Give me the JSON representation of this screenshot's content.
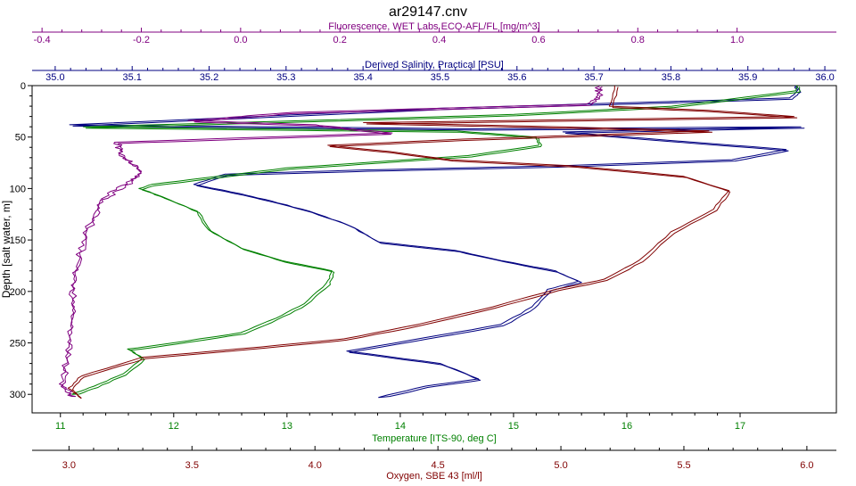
{
  "chart_data": {
    "type": "line",
    "title": "ar29147.cnv",
    "grid": false,
    "legend": "none",
    "y_axis": {
      "label": "Depth [salt water, m]",
      "range": [
        0,
        318
      ],
      "inverted": true,
      "ticks": [
        0,
        50,
        100,
        150,
        200,
        250,
        300
      ]
    },
    "x_axes": [
      {
        "id": "fluorescence",
        "position": "top-outer",
        "label": "Fluorescence, WET Labs ECO-AFL/FL [mg/m^3]",
        "color": "#800080",
        "range": [
          -0.42,
          1.2
        ],
        "ticks": [
          -0.4,
          -0.2,
          0.0,
          0.2,
          0.4,
          0.6,
          0.8,
          1.0
        ],
        "tick_labels": [
          "-0.4",
          "-0.2",
          "0.0",
          "0.2",
          "0.4",
          "0.6",
          "0.8",
          "1.0"
        ]
      },
      {
        "id": "salinity",
        "position": "top-inner",
        "label": "Derived Salinity, Practical [PSU]",
        "color": "#000080",
        "range": [
          34.97,
          36.015
        ],
        "ticks": [
          35.0,
          35.1,
          35.2,
          35.3,
          35.4,
          35.5,
          35.6,
          35.7,
          35.8,
          35.9,
          36.0
        ],
        "tick_labels": [
          "35.0",
          "35.1",
          "35.2",
          "35.3",
          "35.4",
          "35.5",
          "35.6",
          "35.7",
          "35.8",
          "35.9",
          "36.0"
        ]
      },
      {
        "id": "temperature",
        "position": "bottom-inner",
        "label": "Temperature [ITS-90, deg C]",
        "color": "#008000",
        "range": [
          10.75,
          17.85
        ],
        "ticks": [
          11,
          12,
          13,
          14,
          15,
          16,
          17
        ],
        "tick_labels": [
          "11",
          "12",
          "13",
          "14",
          "15",
          "16",
          "17"
        ]
      },
      {
        "id": "oxygen",
        "position": "bottom-outer",
        "label": "Oxygen, SBE 43 [ml/l]",
        "color": "#800000",
        "range": [
          2.85,
          6.12
        ],
        "ticks": [
          3.0,
          3.5,
          4.0,
          4.5,
          5.0,
          5.5,
          6.0
        ],
        "tick_labels": [
          "3.0",
          "3.5",
          "4.0",
          "4.5",
          "5.0",
          "5.5",
          "6.0"
        ]
      }
    ],
    "series": [
      {
        "name": "Derived Salinity, Practical [PSU]",
        "axis": "salinity",
        "color": "#000080",
        "points": [
          [
            35.96,
            0
          ],
          [
            35.965,
            5
          ],
          [
            35.955,
            12
          ],
          [
            35.5,
            22
          ],
          [
            35.02,
            38
          ],
          [
            35.55,
            42
          ],
          [
            35.97,
            40
          ],
          [
            35.66,
            45
          ],
          [
            35.83,
            55
          ],
          [
            35.95,
            62
          ],
          [
            35.88,
            72
          ],
          [
            35.65,
            78
          ],
          [
            35.4,
            82
          ],
          [
            35.22,
            86
          ],
          [
            35.18,
            96
          ],
          [
            35.24,
            105
          ],
          [
            35.28,
            112
          ],
          [
            35.33,
            122
          ],
          [
            35.38,
            135
          ],
          [
            35.42,
            152
          ],
          [
            35.52,
            160
          ],
          [
            35.58,
            170
          ],
          [
            35.65,
            180
          ],
          [
            35.68,
            190
          ],
          [
            35.64,
            198
          ],
          [
            35.62,
            215
          ],
          [
            35.58,
            232
          ],
          [
            35.48,
            245
          ],
          [
            35.38,
            258
          ],
          [
            35.5,
            270
          ],
          [
            35.55,
            285
          ],
          [
            35.48,
            292
          ],
          [
            35.42,
            303
          ]
        ]
      },
      {
        "name": "Temperature [ITS-90, deg C]",
        "axis": "temperature",
        "color": "#008000",
        "points": [
          [
            17.5,
            0
          ],
          [
            17.5,
            5
          ],
          [
            16.4,
            20
          ],
          [
            15.0,
            28
          ],
          [
            13.8,
            32
          ],
          [
            11.2,
            40
          ],
          [
            14.5,
            44
          ],
          [
            15.2,
            50
          ],
          [
            15.22,
            58
          ],
          [
            14.6,
            68
          ],
          [
            13.8,
            74
          ],
          [
            13.0,
            80
          ],
          [
            12.4,
            88
          ],
          [
            11.8,
            96
          ],
          [
            11.7,
            100
          ],
          [
            11.9,
            108
          ],
          [
            12.2,
            122
          ],
          [
            12.3,
            140
          ],
          [
            12.6,
            158
          ],
          [
            12.95,
            170
          ],
          [
            13.4,
            180
          ],
          [
            13.35,
            192
          ],
          [
            13.15,
            212
          ],
          [
            12.9,
            226
          ],
          [
            12.6,
            240
          ],
          [
            12.0,
            250
          ],
          [
            11.6,
            256
          ],
          [
            11.72,
            265
          ],
          [
            11.55,
            280
          ],
          [
            11.3,
            292
          ],
          [
            11.1,
            300
          ]
        ]
      },
      {
        "name": "Oxygen, SBE 43 [ml/l]",
        "axis": "oxygen",
        "color": "#800000",
        "points": [
          [
            5.22,
            0
          ],
          [
            5.2,
            20
          ],
          [
            5.6,
            24
          ],
          [
            5.95,
            30
          ],
          [
            4.2,
            36
          ],
          [
            5.0,
            40
          ],
          [
            5.6,
            44
          ],
          [
            4.6,
            52
          ],
          [
            4.05,
            58
          ],
          [
            4.3,
            64
          ],
          [
            4.55,
            72
          ],
          [
            5.05,
            78
          ],
          [
            5.5,
            88
          ],
          [
            5.68,
            102
          ],
          [
            5.62,
            120
          ],
          [
            5.45,
            142
          ],
          [
            5.32,
            170
          ],
          [
            5.18,
            188
          ],
          [
            4.98,
            198
          ],
          [
            4.72,
            215
          ],
          [
            4.42,
            232
          ],
          [
            4.12,
            246
          ],
          [
            3.78,
            254
          ],
          [
            3.3,
            264
          ],
          [
            3.05,
            282
          ],
          [
            3.0,
            294
          ],
          [
            3.05,
            304
          ]
        ]
      },
      {
        "name": "Fluorescence, WET Labs ECO-AFL/FL [mg/m^3]",
        "axis": "fluorescence",
        "color": "#800080",
        "points": [
          [
            0.72,
            0
          ],
          [
            0.72,
            10
          ],
          [
            0.7,
            18
          ],
          [
            0.1,
            26
          ],
          [
            -0.1,
            34
          ],
          [
            0.15,
            38
          ],
          [
            0.3,
            46
          ],
          [
            -0.25,
            55
          ],
          [
            -0.24,
            68
          ],
          [
            -0.2,
            82
          ],
          [
            -0.22,
            92
          ],
          [
            -0.28,
            110
          ],
          [
            -0.31,
            140
          ],
          [
            -0.33,
            170
          ],
          [
            -0.34,
            200
          ],
          [
            -0.34,
            230
          ],
          [
            -0.35,
            260
          ],
          [
            -0.36,
            290
          ],
          [
            -0.34,
            302
          ]
        ]
      }
    ]
  }
}
